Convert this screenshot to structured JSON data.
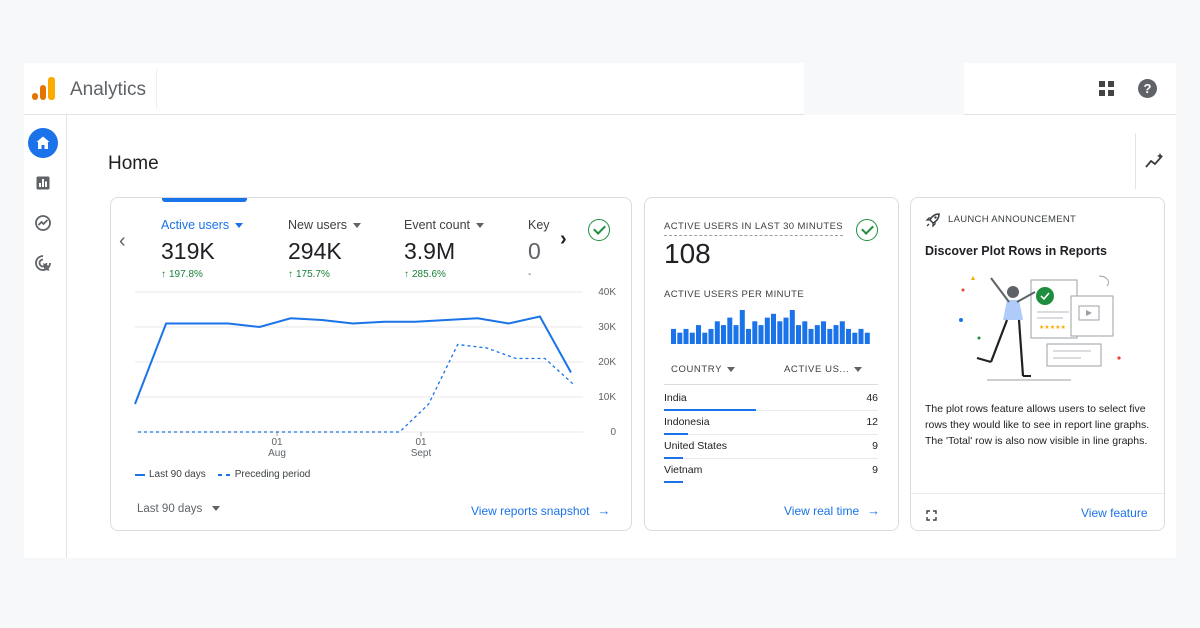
{
  "header": {
    "app_title": "Analytics",
    "icons": [
      "analytics-logo",
      "apps-grid-icon",
      "help-icon"
    ]
  },
  "nav": {
    "items": [
      {
        "icon": "home-icon",
        "active": true
      },
      {
        "icon": "reports-icon",
        "active": false
      },
      {
        "icon": "explore-icon",
        "active": false
      },
      {
        "icon": "advertising-icon",
        "active": false
      }
    ]
  },
  "page": {
    "title": "Home",
    "insights_icon": "insights-sparkline-icon"
  },
  "overview": {
    "metrics": [
      {
        "label": "Active users",
        "value": "319K",
        "change": "197.8%",
        "active": true
      },
      {
        "label": "New users",
        "value": "294K",
        "change": "175.7%",
        "active": false
      },
      {
        "label": "Event count",
        "value": "3.9M",
        "change": "285.6%",
        "active": false
      },
      {
        "label": "Key",
        "value": "0",
        "change": "-",
        "active": false
      }
    ],
    "legend": {
      "current": "Last 90 days",
      "previous": "Preceding period"
    },
    "date_range": "Last 90 days",
    "link": "View reports snapshot"
  },
  "chart_data": {
    "type": "line",
    "x_ticks": [
      {
        "day": "01",
        "month": "Aug"
      },
      {
        "day": "01",
        "month": "Sept"
      }
    ],
    "y_ticks": [
      "40K",
      "30K",
      "20K",
      "10K",
      "0"
    ],
    "ylim": [
      0,
      40000
    ],
    "series": [
      {
        "name": "Last 90 days",
        "style": "solid",
        "color": "#1a73e8",
        "values": [
          8000,
          31000,
          31000,
          31000,
          30000,
          32500,
          32000,
          31000,
          31500,
          31500,
          32000,
          32500,
          31000,
          33000,
          17000
        ]
      },
      {
        "name": "Preceding period",
        "style": "dashed",
        "color": "#1a73e8",
        "values": [
          0,
          0,
          0,
          0,
          0,
          0,
          0,
          0,
          0,
          0,
          8000,
          25000,
          24000,
          21000,
          21000,
          13500
        ]
      }
    ]
  },
  "realtime": {
    "title": "ACTIVE USERS IN LAST 30 MINUTES",
    "value": "108",
    "per_minute_label": "ACTIVE USERS PER MINUTE",
    "per_minute": [
      4,
      3,
      4,
      3,
      5,
      3,
      4,
      6,
      5,
      7,
      5,
      9,
      4,
      6,
      5,
      7,
      8,
      6,
      7,
      9,
      5,
      6,
      4,
      5,
      6,
      4,
      5,
      6,
      4,
      3,
      4,
      3
    ],
    "col_country": "COUNTRY",
    "col_users": "ACTIVE US...",
    "rows": [
      {
        "country": "India",
        "users": "46",
        "share": 0.43
      },
      {
        "country": "Indonesia",
        "users": "12",
        "share": 0.11
      },
      {
        "country": "United States",
        "users": "9",
        "share": 0.09
      },
      {
        "country": "Vietnam",
        "users": "9",
        "share": 0.09
      }
    ],
    "link": "View real time"
  },
  "announcement": {
    "header": "LAUNCH ANNOUNCEMENT",
    "title": "Discover Plot Rows in Reports",
    "description": "The plot rows feature allows users to select five rows they would like to see in report line graphs. The 'Total' row is also now visible in line graphs.",
    "link": "View feature",
    "icons": [
      "rocket-icon",
      "expand-icon"
    ]
  }
}
